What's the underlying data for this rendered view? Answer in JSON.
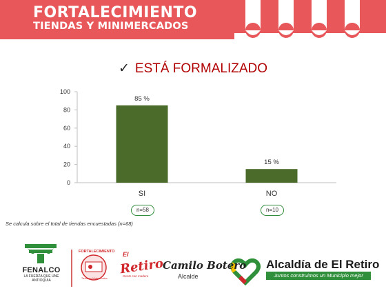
{
  "header": {
    "title_line1": "FORTALECIMIENTO",
    "title_line2": "TIENDAS Y MINIMERCADOS",
    "colors": {
      "red": "#e8575a",
      "white": "#ffffff"
    }
  },
  "chart_title": "ESTÁ FORMALIZADO",
  "chart_data": {
    "type": "bar",
    "title": "ESTÁ FORMALIZADO",
    "categories": [
      "SI",
      "NO"
    ],
    "values": [
      85,
      15
    ],
    "value_labels": [
      "85 %",
      "15 %"
    ],
    "ylim": [
      0,
      100
    ],
    "yticks": [
      "0",
      "20",
      "40",
      "60",
      "80",
      "100"
    ],
    "grid": false,
    "bar_color": "#4a6b2a",
    "xlabel": "",
    "ylabel": ""
  },
  "sample_sizes": [
    "n=58",
    "n=10"
  ],
  "footnote": "Se calcula sobre el total de tiendas encuestadas (n=68)",
  "logos": {
    "fenalco_name": "FENALCO",
    "fenalco_sub1": "LA FUERZA QUE UNE",
    "fenalco_sub2": "ANTIOQUIA",
    "fortalecimiento_label": "FORTALECIMIENTO",
    "fortalecimiento_sub": "Tiendas y Minimercados",
    "retiro_el": "El",
    "retiro_word": "Retiro",
    "retiro_sub": "Gente con madera",
    "botero_name": "Camilo Botero",
    "botero_role": "Alcalde",
    "alcaldia_name": "Alcaldía de El Retiro",
    "alcaldia_slogan": "Juntos construimos un Municipio mejor"
  }
}
